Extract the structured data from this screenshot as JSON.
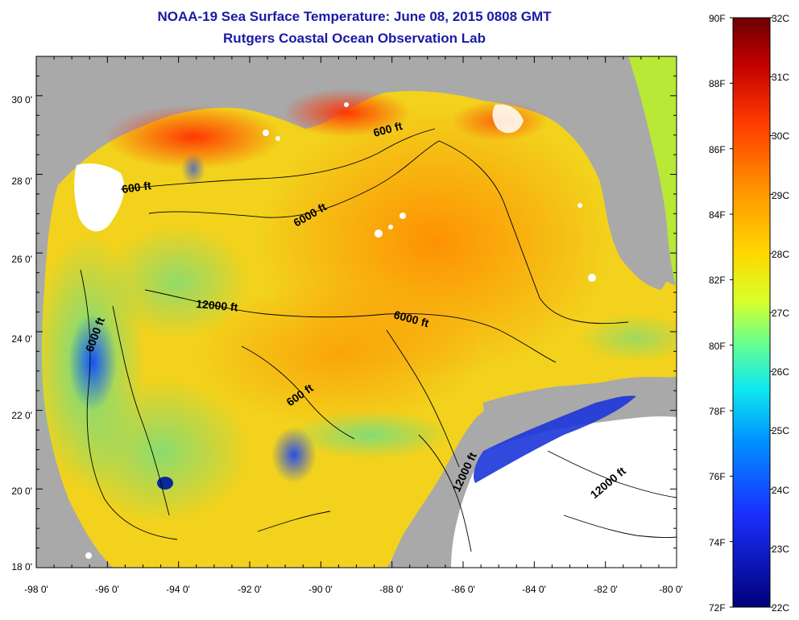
{
  "title": {
    "line1": "NOAA-19 Sea Surface Temperature:  June 08, 2015 0808 GMT",
    "line2": "Rutgers Coastal Ocean Observation Lab"
  },
  "axes": {
    "lat_ticks": [
      "30 0'",
      "28 0'",
      "26 0'",
      "24 0'",
      "22 0'",
      "20 0'",
      "18 0'"
    ],
    "lon_ticks": [
      "-98 0'",
      "-96 0'",
      "-94 0'",
      "-92 0'",
      "-90 0'",
      "-88 0'",
      "-86 0'",
      "-84 0'",
      "-82 0'",
      "-80 0'"
    ]
  },
  "contour_labels": [
    {
      "text": "600 ft",
      "id": "c600a"
    },
    {
      "text": "600 ft",
      "id": "c600b"
    },
    {
      "text": "6000 ft",
      "id": "c6000a"
    },
    {
      "text": "6000 ft",
      "id": "c6000b"
    },
    {
      "text": "6000 ft",
      "id": "c6000c"
    },
    {
      "text": "12000 ft",
      "id": "c12000a"
    },
    {
      "text": "600 ft",
      "id": "c600c"
    },
    {
      "text": "12000 ft",
      "id": "c12000b"
    },
    {
      "text": "12000 ft",
      "id": "c12000c"
    }
  ],
  "colorbar": {
    "fahrenheit": [
      "90F",
      "88F",
      "86F",
      "84F",
      "82F",
      "80F",
      "78F",
      "76F",
      "74F",
      "72F"
    ],
    "celsius": [
      "32C",
      "31C",
      "30C",
      "29C",
      "28C",
      "27C",
      "26C",
      "25C",
      "24C",
      "23C",
      "22C"
    ],
    "colors": [
      "#7a0000",
      "#cc0000",
      "#ff3300",
      "#ff8c00",
      "#ffd000",
      "#d8ff30",
      "#6fff8a",
      "#10e0e8",
      "#0096ff",
      "#1a3cff",
      "#00008b"
    ]
  },
  "colors": {
    "land": "#a9a9a9",
    "title": "#1a1aa6",
    "cloud": "#ffffff"
  }
}
